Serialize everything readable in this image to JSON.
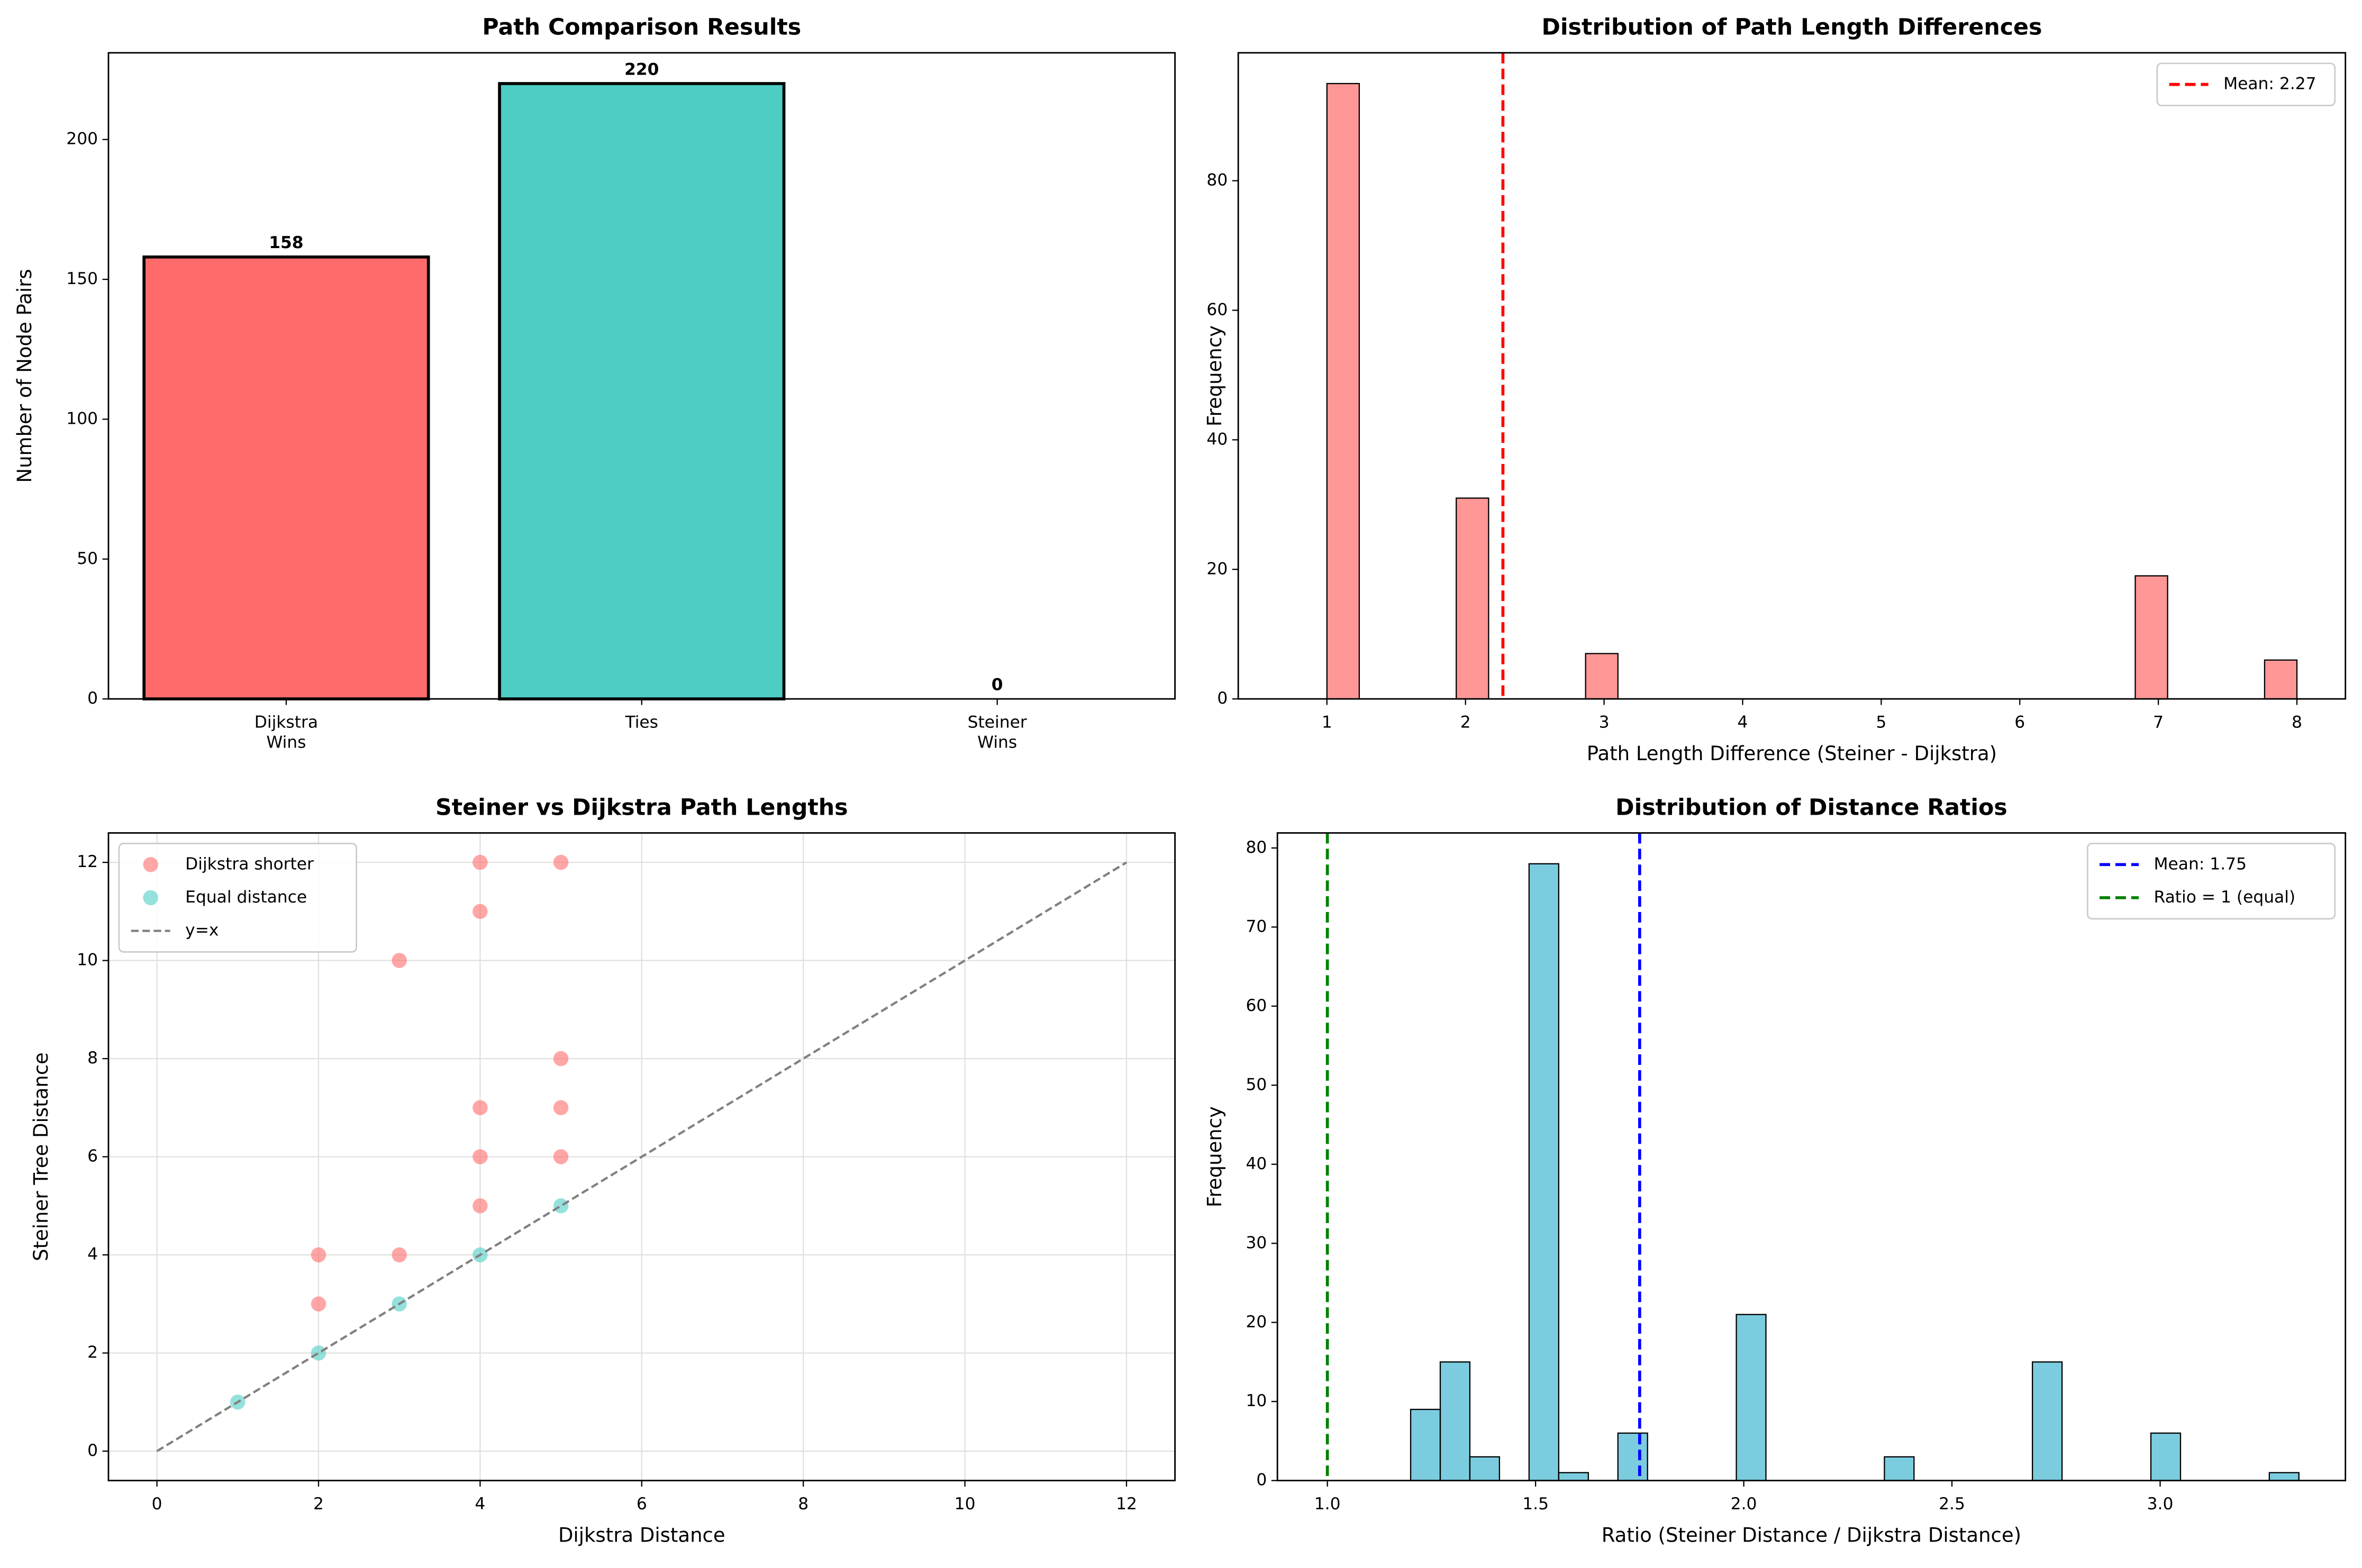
{
  "chart_data": [
    {
      "type": "bar",
      "title": "Path Comparison Results",
      "ylabel": "Number of Node Pairs",
      "categories": [
        "Dijkstra\nWins",
        "Ties",
        "Steiner\nWins"
      ],
      "values": [
        158,
        220,
        0
      ],
      "colors": [
        "#ff6b6b",
        "#4ecdc4",
        "#45b7d1"
      ],
      "edgecolor": "black",
      "ylim": [
        0,
        231
      ],
      "yticks": [
        0,
        50,
        100,
        150,
        200
      ],
      "grid": false
    },
    {
      "type": "histogram",
      "title": "Distribution of Path Length Differences",
      "xlabel": "Path Length Difference (Steiner - Dijkstra)",
      "ylabel": "Frequency",
      "bins": [
        1,
        1.2333,
        1.4667,
        1.7,
        1.9333,
        2.1667,
        2.4,
        2.6333,
        2.8667,
        3.1,
        3.3333,
        3.5667,
        3.8,
        4.0333,
        4.2667,
        4.5,
        4.7333,
        4.9667,
        5.2,
        5.4333,
        5.6667,
        5.9,
        6.1333,
        6.3667,
        6.6,
        6.8333,
        7.0667,
        7.3,
        7.5333,
        7.7667,
        8
      ],
      "values": [
        95,
        0,
        0,
        0,
        31,
        0,
        0,
        0,
        7,
        0,
        0,
        0,
        0,
        0,
        0,
        0,
        0,
        0,
        0,
        0,
        0,
        0,
        0,
        0,
        0,
        19,
        0,
        0,
        0,
        6
      ],
      "color": "#ff6b6b",
      "alpha": 0.7,
      "edgecolor": "black",
      "lines": [
        {
          "name": "Mean: 2.27",
          "value": 2.27,
          "color": "red"
        }
      ],
      "xlim": [
        0.36,
        8.35
      ],
      "xticks": [
        1,
        2,
        3,
        4,
        5,
        6,
        7,
        8
      ],
      "ylim": [
        0,
        99.75
      ],
      "yticks": [
        0,
        20,
        40,
        60,
        80
      ],
      "legend": "upper right",
      "grid": false
    },
    {
      "type": "scatter",
      "title": "Steiner vs Dijkstra Path Lengths",
      "xlabel": "Dijkstra Distance",
      "ylabel": "Steiner Tree Distance",
      "series": [
        {
          "name": "Dijkstra shorter",
          "color": "#ff6b6b",
          "alpha": 0.6,
          "x": [
            2,
            2,
            3,
            3,
            4,
            4,
            4,
            4,
            4,
            5,
            5,
            5,
            5
          ],
          "values": [
            4,
            3,
            4,
            10,
            12,
            11,
            7,
            6,
            5,
            12,
            8,
            7,
            6
          ]
        },
        {
          "name": "Equal distance",
          "color": "#4ecdc4",
          "alpha": 0.6,
          "x": [
            1,
            2,
            3,
            4,
            5
          ],
          "values": [
            1,
            2,
            3,
            4,
            5
          ]
        },
        {
          "name": "y=x",
          "color": "gray",
          "line": "dashed",
          "x": [
            0,
            12
          ],
          "values": [
            0,
            12
          ]
        }
      ],
      "xlim": [
        -0.6,
        12.6
      ],
      "xticks": [
        0,
        2,
        4,
        6,
        8,
        10,
        12
      ],
      "ylim": [
        -0.6,
        12.6
      ],
      "yticks": [
        0,
        2,
        4,
        6,
        8,
        10,
        12
      ],
      "legend": "upper left",
      "grid": true
    },
    {
      "type": "histogram",
      "title": "Distribution of Distance Ratios",
      "xlabel": "Ratio (Steiner Distance / Dijkstra Distance)",
      "ylabel": "Frequency",
      "bins": [
        1.2,
        1.2711,
        1.3422,
        1.4133,
        1.4844,
        1.5556,
        1.6267,
        1.6978,
        1.7689,
        1.84,
        1.9111,
        1.9822,
        2.0533,
        2.1244,
        2.1956,
        2.2667,
        2.3378,
        2.4089,
        2.48,
        2.5511,
        2.6222,
        2.6933,
        2.7644,
        2.8356,
        2.9067,
        2.9778,
        3.0489,
        3.12,
        3.1911,
        3.2622,
        3.3333
      ],
      "values": [
        9,
        15,
        3,
        0,
        78,
        1,
        0,
        6,
        0,
        0,
        0,
        21,
        0,
        0,
        0,
        0,
        3,
        0,
        0,
        0,
        0,
        15,
        0,
        0,
        0,
        6,
        0,
        0,
        0,
        1
      ],
      "color": "#45b7d1",
      "alpha": 0.7,
      "edgecolor": "black",
      "lines": [
        {
          "name": "Mean: 1.75",
          "value": 1.75,
          "color": "blue"
        },
        {
          "name": "Ratio = 1 (equal)",
          "value": 1,
          "color": "green"
        }
      ],
      "xlim": [
        0.88,
        3.445
      ],
      "xticks": [
        {
          "value": 1,
          "label": "1.0"
        },
        1.5,
        {
          "value": 2,
          "label": "2.0"
        },
        2.5,
        {
          "value": 3,
          "label": "3.0"
        }
      ],
      "ylim": [
        0,
        81.9
      ],
      "yticks": [
        0,
        10,
        20,
        30,
        40,
        50,
        60,
        70,
        80
      ],
      "legend": "upper right",
      "grid": false
    }
  ]
}
